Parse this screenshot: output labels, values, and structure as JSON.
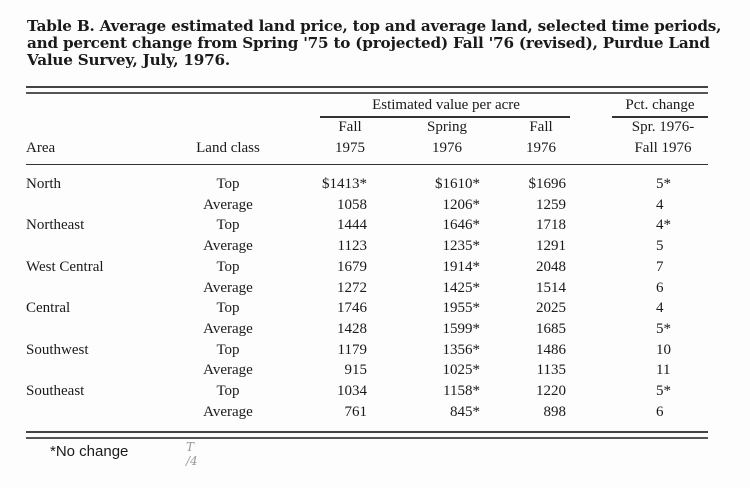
{
  "title": "Table B. Average estimated land price, top and average land, selected time periods, and percent change from Spring '75 to (projected) Fall '76 (revised), Purdue Land Value Survey, July, 1976.",
  "headers": {
    "group_value": "Estimated value per acre",
    "group_pct": "Pct. change",
    "area": "Area",
    "land_class": "Land class",
    "col1_a": "Fall",
    "col1_b": "1975",
    "col2_a": "Spring",
    "col2_b": "1976",
    "col3_a": "Fall",
    "col3_b": "1976",
    "col4_a": "Spr. 1976-",
    "col4_b": "Fall 1976"
  },
  "rows": [
    {
      "area": "North",
      "class": "Top",
      "fall75": "$1413*",
      "spring76": "$1610*",
      "fall76": "$1696",
      "pct": "5*"
    },
    {
      "area": "",
      "class": "Average",
      "fall75": "1058",
      "spring76": "1206*",
      "fall76": "1259",
      "pct": "4"
    },
    {
      "area": "Northeast",
      "class": "Top",
      "fall75": "1444",
      "spring76": "1646*",
      "fall76": "1718",
      "pct": "4*"
    },
    {
      "area": "",
      "class": "Average",
      "fall75": "1123",
      "spring76": "1235*",
      "fall76": "1291",
      "pct": "5"
    },
    {
      "area": "West Central",
      "class": "Top",
      "fall75": "1679",
      "spring76": "1914*",
      "fall76": "2048",
      "pct": "7"
    },
    {
      "area": "",
      "class": "Average",
      "fall75": "1272",
      "spring76": "1425*",
      "fall76": "1514",
      "pct": "6"
    },
    {
      "area": "Central",
      "class": "Top",
      "fall75": "1746",
      "spring76": "1955*",
      "fall76": "2025",
      "pct": "4"
    },
    {
      "area": "",
      "class": "Average",
      "fall75": "1428",
      "spring76": "1599*",
      "fall76": "1685",
      "pct": "5*"
    },
    {
      "area": "Southwest",
      "class": "Top",
      "fall75": "1179",
      "spring76": "1356*",
      "fall76": "1486",
      "pct": "10"
    },
    {
      "area": "",
      "class": "Average",
      "fall75": "915",
      "spring76": "1025*",
      "fall76": "1135",
      "pct": "11"
    },
    {
      "area": "Southeast",
      "class": "Top",
      "fall75": "1034",
      "spring76": "1158*",
      "fall76": "1220",
      "pct": "5*"
    },
    {
      "area": "",
      "class": "Average",
      "fall75": "761",
      "spring76": "845*",
      "fall76": "898",
      "pct": "6"
    }
  ],
  "footnote": "*No change"
}
